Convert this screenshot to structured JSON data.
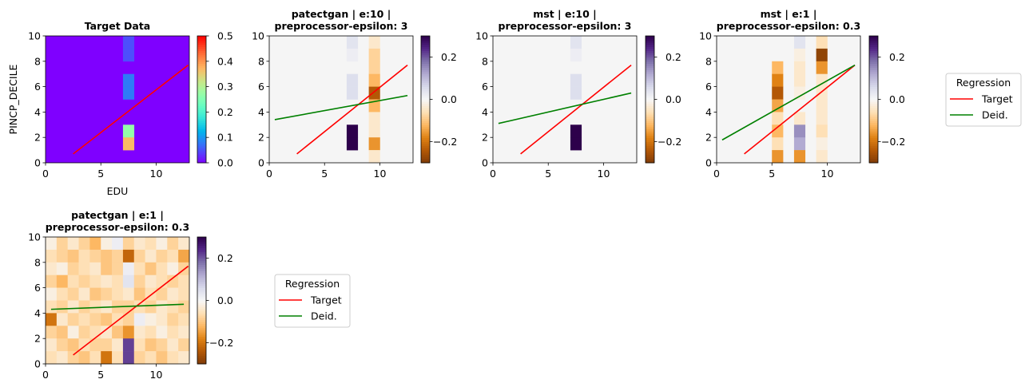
{
  "chart_data": [
    {
      "id": "p0",
      "type": "heatmap",
      "title_lines": [
        "Target Data"
      ],
      "xlabel": "EDU",
      "ylabel": "PINCP_DECILE",
      "xlim": [
        0,
        13
      ],
      "ylim": [
        0,
        10
      ],
      "xticks": [
        "0",
        "5",
        "10"
      ],
      "yticks": [
        "0",
        "2",
        "4",
        "6",
        "8",
        "10"
      ],
      "colormap": "rainbow",
      "background": "#7f00ff",
      "colorbar": {
        "range": [
          0,
          0.5
        ],
        "ticks": [
          "0.0",
          "0.1",
          "0.2",
          "0.3",
          "0.4",
          "0.5"
        ]
      },
      "cells": [
        {
          "x": 7,
          "y": 9,
          "v": 0.05
        },
        {
          "x": 7,
          "y": 8,
          "v": 0.05
        },
        {
          "x": 7,
          "y": 6,
          "v": 0.08
        },
        {
          "x": 7,
          "y": 5,
          "v": 0.08
        },
        {
          "x": 7,
          "y": 2,
          "v": 0.27
        },
        {
          "x": 7,
          "y": 1,
          "v": 0.37
        }
      ],
      "regression": [
        {
          "name": "Target",
          "color": "#ff0000",
          "x": [
            2.5,
            12.9
          ],
          "y": [
            0.7,
            7.7
          ]
        }
      ]
    },
    {
      "id": "p1",
      "type": "heatmap",
      "title_lines": [
        "patectgan | e:10 |",
        "preprocessor-epsilon: 3"
      ],
      "xlim": [
        0,
        13
      ],
      "ylim": [
        0,
        10
      ],
      "xticks": [
        "0",
        "5",
        "10"
      ],
      "yticks": [
        "0",
        "2",
        "4",
        "6",
        "8",
        "10"
      ],
      "colormap": "PuOr",
      "background": "#f5f5f5",
      "colorbar": {
        "range": [
          -0.3,
          0.3
        ],
        "ticks": [
          "0.2",
          "0.0",
          "−0.2"
        ]
      },
      "cells": [
        {
          "x": 7,
          "y": 9,
          "v": 0.04
        },
        {
          "x": 7,
          "y": 8,
          "v": 0.02
        },
        {
          "x": 7,
          "y": 6,
          "v": 0.05
        },
        {
          "x": 7,
          "y": 5,
          "v": 0.05
        },
        {
          "x": 7,
          "y": 2,
          "v": 0.3
        },
        {
          "x": 7,
          "y": 1,
          "v": 0.3
        },
        {
          "x": 9,
          "y": 9,
          "v": -0.04
        },
        {
          "x": 9,
          "y": 8,
          "v": -0.08
        },
        {
          "x": 9,
          "y": 7,
          "v": -0.08
        },
        {
          "x": 9,
          "y": 6,
          "v": -0.12
        },
        {
          "x": 9,
          "y": 5,
          "v": -0.24
        },
        {
          "x": 9,
          "y": 4,
          "v": -0.12
        },
        {
          "x": 9,
          "y": 3,
          "v": -0.04
        },
        {
          "x": 9,
          "y": 2,
          "v": -0.04
        },
        {
          "x": 9,
          "y": 1,
          "v": -0.16
        },
        {
          "x": 9,
          "y": 0,
          "v": -0.04
        }
      ],
      "regression": [
        {
          "name": "Target",
          "color": "#ff0000",
          "x": [
            2.5,
            12.5
          ],
          "y": [
            0.7,
            7.7
          ]
        },
        {
          "name": "Deid.",
          "color": "#008000",
          "x": [
            0.5,
            12.5
          ],
          "y": [
            3.4,
            5.3
          ]
        }
      ]
    },
    {
      "id": "p2",
      "type": "heatmap",
      "title_lines": [
        "mst | e:10 |",
        "preprocessor-epsilon: 3"
      ],
      "xlim": [
        0,
        13
      ],
      "ylim": [
        0,
        10
      ],
      "xticks": [
        "0",
        "5",
        "10"
      ],
      "yticks": [
        "0",
        "2",
        "4",
        "6",
        "8",
        "10"
      ],
      "colormap": "PuOr",
      "background": "#f5f5f5",
      "colorbar": {
        "range": [
          -0.3,
          0.3
        ],
        "ticks": [
          "0.2",
          "0.0",
          "−0.2"
        ]
      },
      "cells": [
        {
          "x": 7,
          "y": 9,
          "v": 0.04
        },
        {
          "x": 7,
          "y": 8,
          "v": 0.02
        },
        {
          "x": 7,
          "y": 6,
          "v": 0.05
        },
        {
          "x": 7,
          "y": 5,
          "v": 0.05
        },
        {
          "x": 7,
          "y": 2,
          "v": 0.3
        },
        {
          "x": 7,
          "y": 1,
          "v": 0.3
        }
      ],
      "regression": [
        {
          "name": "Target",
          "color": "#ff0000",
          "x": [
            2.5,
            12.5
          ],
          "y": [
            0.7,
            7.7
          ]
        },
        {
          "name": "Deid.",
          "color": "#008000",
          "x": [
            0.5,
            12.5
          ],
          "y": [
            3.1,
            5.5
          ]
        }
      ]
    },
    {
      "id": "p3",
      "type": "heatmap",
      "title_lines": [
        "mst | e:1 |",
        "preprocessor-epsilon: 0.3"
      ],
      "xlim": [
        0,
        13
      ],
      "ylim": [
        0,
        10
      ],
      "xticks": [
        "0",
        "5",
        "10"
      ],
      "yticks": [
        "0",
        "2",
        "4",
        "6",
        "8",
        "10"
      ],
      "colormap": "PuOr",
      "background": "#f5f5f5",
      "colorbar": {
        "range": [
          -0.3,
          0.3
        ],
        "ticks": [
          "0.2",
          "0.0",
          "−0.2"
        ]
      },
      "cells": [
        {
          "x": 5,
          "y": 7,
          "v": -0.12
        },
        {
          "x": 5,
          "y": 6,
          "v": -0.18
        },
        {
          "x": 5,
          "y": 5,
          "v": -0.24
        },
        {
          "x": 5,
          "y": 4,
          "v": -0.14
        },
        {
          "x": 5,
          "y": 3,
          "v": -0.06
        },
        {
          "x": 5,
          "y": 2,
          "v": -0.12
        },
        {
          "x": 5,
          "y": 1,
          "v": -0.06
        },
        {
          "x": 5,
          "y": 0,
          "v": -0.16
        },
        {
          "x": 7,
          "y": 9,
          "v": 0.04
        },
        {
          "x": 7,
          "y": 8,
          "v": -0.02
        },
        {
          "x": 7,
          "y": 7,
          "v": -0.04
        },
        {
          "x": 7,
          "y": 6,
          "v": -0.04
        },
        {
          "x": 7,
          "y": 5,
          "v": -0.02
        },
        {
          "x": 7,
          "y": 3,
          "v": -0.04
        },
        {
          "x": 7,
          "y": 2,
          "v": 0.15
        },
        {
          "x": 7,
          "y": 1,
          "v": 0.12
        },
        {
          "x": 7,
          "y": 0,
          "v": -0.16
        },
        {
          "x": 9,
          "y": 9,
          "v": -0.06
        },
        {
          "x": 9,
          "y": 8,
          "v": -0.28
        },
        {
          "x": 9,
          "y": 7,
          "v": -0.16
        },
        {
          "x": 9,
          "y": 6,
          "v": -0.04
        },
        {
          "x": 9,
          "y": 5,
          "v": -0.04
        },
        {
          "x": 9,
          "y": 4,
          "v": -0.04
        },
        {
          "x": 9,
          "y": 3,
          "v": -0.04
        },
        {
          "x": 9,
          "y": 2,
          "v": -0.06
        },
        {
          "x": 9,
          "y": 1,
          "v": -0.02
        },
        {
          "x": 9,
          "y": 0,
          "v": -0.04
        }
      ],
      "regression": [
        {
          "name": "Target",
          "color": "#ff0000",
          "x": [
            2.5,
            12.5
          ],
          "y": [
            0.7,
            7.7
          ]
        },
        {
          "name": "Deid.",
          "color": "#008000",
          "x": [
            0.5,
            12.5
          ],
          "y": [
            1.8,
            7.7
          ]
        }
      ]
    },
    {
      "id": "p4",
      "type": "heatmap",
      "title_lines": [
        "patectgan | e:1 |",
        "preprocessor-epsilon: 0.3"
      ],
      "xlim": [
        0,
        13
      ],
      "ylim": [
        0,
        10
      ],
      "xticks": [
        "0",
        "5",
        "10"
      ],
      "yticks": [
        "0",
        "2",
        "4",
        "6",
        "8",
        "10"
      ],
      "colormap": "PuOr",
      "background": "#f5f5f5",
      "colorbar": {
        "range": [
          -0.3,
          0.3
        ],
        "ticks": [
          "0.2",
          "0.0",
          "−0.2"
        ]
      },
      "grid_values": [
        [
          -0.02,
          -0.08,
          -0.04,
          -0.08,
          -0.12,
          -0.02,
          0.02,
          -0.08,
          -0.04,
          -0.06,
          -0.02,
          -0.08,
          -0.04
        ],
        [
          -0.06,
          -0.08,
          -0.1,
          -0.06,
          -0.08,
          -0.1,
          -0.08,
          -0.22,
          -0.08,
          -0.04,
          -0.08,
          -0.06,
          -0.14
        ],
        [
          -0.04,
          -0.02,
          -0.08,
          -0.06,
          -0.04,
          -0.1,
          -0.08,
          0.02,
          -0.06,
          -0.1,
          -0.06,
          -0.02,
          -0.08
        ],
        [
          -0.08,
          -0.12,
          -0.06,
          -0.08,
          -0.06,
          -0.04,
          -0.06,
          0.04,
          -0.08,
          -0.04,
          -0.06,
          -0.08,
          -0.06
        ],
        [
          -0.02,
          -0.06,
          -0.08,
          -0.04,
          -0.1,
          -0.08,
          -0.06,
          -0.04,
          -0.1,
          -0.06,
          -0.08,
          -0.04,
          -0.06
        ],
        [
          -0.06,
          -0.08,
          -0.04,
          -0.08,
          -0.06,
          -0.04,
          -0.08,
          -0.08,
          -0.06,
          -0.08,
          -0.04,
          -0.06,
          -0.08
        ],
        [
          -0.2,
          -0.04,
          -0.08,
          -0.06,
          -0.08,
          -0.1,
          -0.06,
          -0.08,
          0.02,
          -0.02,
          -0.04,
          -0.08,
          -0.06
        ],
        [
          -0.08,
          -0.1,
          -0.02,
          -0.08,
          -0.06,
          -0.04,
          -0.1,
          -0.16,
          -0.04,
          -0.06,
          -0.02,
          -0.06,
          -0.04
        ],
        [
          -0.04,
          -0.08,
          -0.1,
          -0.06,
          -0.08,
          -0.08,
          -0.04,
          0.22,
          -0.06,
          -0.1,
          -0.08,
          -0.04,
          -0.08
        ],
        [
          -0.06,
          -0.04,
          -0.08,
          -0.1,
          -0.06,
          -0.2,
          -0.06,
          0.22,
          -0.08,
          -0.06,
          -0.1,
          -0.06,
          -0.04
        ]
      ],
      "regression": [
        {
          "name": "Target",
          "color": "#ff0000",
          "x": [
            2.5,
            12.9
          ],
          "y": [
            0.7,
            7.7
          ]
        },
        {
          "name": "Deid.",
          "color": "#008000",
          "x": [
            0.5,
            12.5
          ],
          "y": [
            4.3,
            4.7
          ]
        }
      ]
    }
  ],
  "legends": [
    {
      "id": "legend-top",
      "title": "Regression",
      "entries": [
        {
          "label": "Target",
          "color": "#ff0000"
        },
        {
          "label": "Deid.",
          "color": "#008000"
        }
      ]
    },
    {
      "id": "legend-bottom",
      "title": "Regression",
      "entries": [
        {
          "label": "Target",
          "color": "#ff0000"
        },
        {
          "label": "Deid.",
          "color": "#008000"
        }
      ]
    }
  ]
}
